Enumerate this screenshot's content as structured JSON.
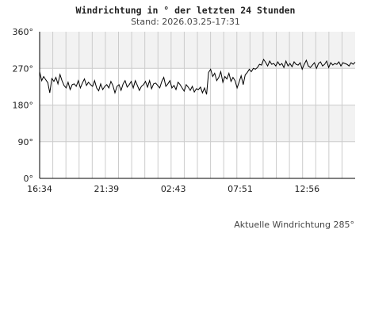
{
  "title": "Windrichtung in ° der letzten 24 Stunden",
  "subtitle": "Stand: 2026.03.25-17:31",
  "current_note": "Aktuelle Windrichtung 285°",
  "colors": {
    "band": "#f2f2f2",
    "grid": "#cccccc",
    "axis": "#000000",
    "line": "#000000"
  },
  "chart_data": {
    "type": "line",
    "title": "Windrichtung in ° der letzten 24 Stunden",
    "subtitle": "Stand: 2026.03.25-17:31",
    "xlabel": "",
    "ylabel": "",
    "ylim": [
      0,
      360
    ],
    "y_ticks": [
      "0°",
      "90°",
      "180°",
      "270°",
      "360°"
    ],
    "x_ticks": [
      "16:34",
      "21:39",
      "02:43",
      "07:51",
      "12:56"
    ],
    "x_range": [
      "16:34",
      "17:31"
    ],
    "grid": true,
    "series": [
      {
        "values": [
          262,
          240,
          250,
          242,
          235,
          210,
          245,
          238,
          248,
          232,
          255,
          240,
          228,
          222,
          236,
          218,
          230,
          232,
          226,
          240,
          222,
          234,
          244,
          228,
          236,
          230,
          226,
          240,
          222,
          215,
          232,
          218,
          226,
          230,
          222,
          238,
          228,
          210,
          226,
          230,
          216,
          232,
          240,
          224,
          230,
          238,
          222,
          240,
          228,
          216,
          226,
          230,
          238,
          224,
          240,
          220,
          232,
          234,
          228,
          222,
          238,
          248,
          226,
          232,
          240,
          222,
          228,
          218,
          236,
          230,
          222,
          214,
          230,
          224,
          216,
          226,
          212,
          220,
          218,
          224,
          210,
          222,
          206,
          260,
          268,
          250,
          258,
          240,
          248,
          262,
          236,
          250,
          244,
          258,
          238,
          248,
          240,
          222,
          236,
          252,
          230,
          254,
          260,
          268,
          262,
          270,
          268,
          272,
          280,
          278,
          292,
          285,
          276,
          288,
          280,
          282,
          276,
          286,
          278,
          282,
          272,
          288,
          276,
          282,
          274,
          286,
          280,
          278,
          284,
          268,
          280,
          290,
          276,
          272,
          278,
          284,
          270,
          282,
          286,
          276,
          280,
          288,
          272,
          284,
          278,
          282,
          280,
          286,
          276,
          284,
          282,
          280,
          276,
          284,
          280,
          285
        ]
      }
    ]
  }
}
